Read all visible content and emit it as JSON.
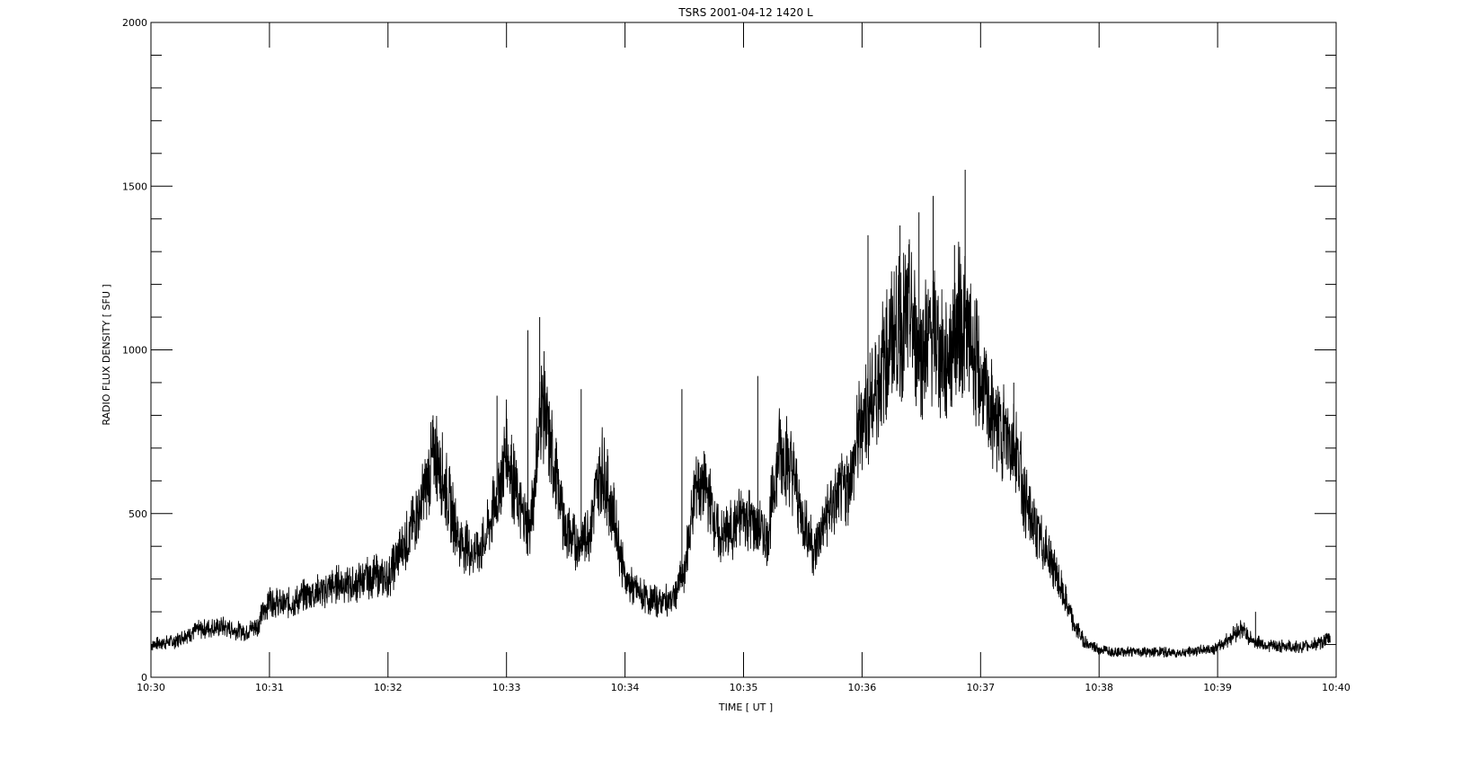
{
  "colors": {
    "background": "#ffffff",
    "line": "#000000",
    "axes": "#000000"
  },
  "chart_data": {
    "type": "line",
    "title": "TSRS  2001-04-12  1420  L",
    "xlabel": "TIME [ UT ]",
    "ylabel": "RADIO FLUX DENSITY [ SFU ]",
    "x_unit": "UT (minutes after 10:30)",
    "xlim": [
      0,
      10
    ],
    "ylim": [
      0,
      2000
    ],
    "x_ticks": [
      {
        "value": 0,
        "label": "10:30"
      },
      {
        "value": 1,
        "label": "10:31"
      },
      {
        "value": 2,
        "label": "10:32"
      },
      {
        "value": 3,
        "label": "10:33"
      },
      {
        "value": 4,
        "label": "10:34"
      },
      {
        "value": 5,
        "label": "10:35"
      },
      {
        "value": 6,
        "label": "10:36"
      },
      {
        "value": 7,
        "label": "10:37"
      },
      {
        "value": 8,
        "label": "10:38"
      },
      {
        "value": 9,
        "label": "10:39"
      },
      {
        "value": 10,
        "label": "10:40"
      }
    ],
    "y_ticks": [
      {
        "value": 0,
        "label": "0"
      },
      {
        "value": 500,
        "label": "500"
      },
      {
        "value": 1000,
        "label": "1000"
      },
      {
        "value": 1500,
        "label": "1500"
      },
      {
        "value": 2000,
        "label": "2000"
      }
    ],
    "y_minor_step": 100,
    "grid": false,
    "legend": "none",
    "series": [
      {
        "x": [
          0.0,
          0.1,
          0.2,
          0.3,
          0.4,
          0.5,
          0.6,
          0.7,
          0.8,
          0.9,
          1.0,
          1.1,
          1.2,
          1.3,
          1.4,
          1.5,
          1.6,
          1.7,
          1.8,
          1.9,
          2.0,
          2.1,
          2.2,
          2.3,
          2.4,
          2.5,
          2.6,
          2.7,
          2.8,
          2.9,
          3.0,
          3.1,
          3.2,
          3.3,
          3.4,
          3.5,
          3.6,
          3.7,
          3.8,
          3.9,
          4.0,
          4.1,
          4.2,
          4.3,
          4.4,
          4.5,
          4.6,
          4.7,
          4.8,
          4.9,
          5.0,
          5.1,
          5.2,
          5.3,
          5.4,
          5.5,
          5.6,
          5.7,
          5.8,
          5.9,
          6.0,
          6.1,
          6.2,
          6.3,
          6.4,
          6.5,
          6.6,
          6.7,
          6.8,
          6.9,
          7.0,
          7.1,
          7.2,
          7.3,
          7.4,
          7.5,
          7.6,
          7.7,
          7.8,
          7.9,
          8.0,
          8.1,
          8.2,
          8.3,
          8.4,
          8.5,
          8.6,
          8.7,
          8.8,
          8.9,
          9.0,
          9.1,
          9.2,
          9.3,
          9.4,
          9.5,
          9.6,
          9.7,
          9.8,
          9.9,
          9.95
        ],
        "y": [
          100,
          105,
          110,
          130,
          145,
          150,
          155,
          145,
          140,
          160,
          240,
          220,
          230,
          250,
          260,
          270,
          290,
          280,
          300,
          310,
          300,
          380,
          450,
          550,
          700,
          560,
          420,
          380,
          400,
          520,
          700,
          520,
          450,
          850,
          650,
          450,
          400,
          450,
          650,
          500,
          300,
          260,
          240,
          230,
          240,
          320,
          600,
          560,
          420,
          450,
          500,
          470,
          420,
          700,
          650,
          480,
          380,
          500,
          550,
          600,
          800,
          850,
          1000,
          1050,
          1100,
          1000,
          1050,
          950,
          1100,
          1050,
          900,
          800,
          750,
          700,
          500,
          420,
          350,
          250,
          150,
          100,
          85,
          80,
          80,
          78,
          78,
          78,
          75,
          75,
          80,
          85,
          90,
          120,
          150,
          110,
          100,
          95,
          95,
          90,
          100,
          110,
          120
        ],
        "spikes": [
          {
            "x": 2.38,
            "y": 800
          },
          {
            "x": 2.92,
            "y": 860
          },
          {
            "x": 3.18,
            "y": 1060
          },
          {
            "x": 3.28,
            "y": 1100
          },
          {
            "x": 3.63,
            "y": 880
          },
          {
            "x": 4.48,
            "y": 880
          },
          {
            "x": 5.12,
            "y": 920
          },
          {
            "x": 6.05,
            "y": 1350
          },
          {
            "x": 6.32,
            "y": 1380
          },
          {
            "x": 6.48,
            "y": 1420
          },
          {
            "x": 6.6,
            "y": 1470
          },
          {
            "x": 6.78,
            "y": 1320
          },
          {
            "x": 6.87,
            "y": 1550
          },
          {
            "x": 7.28,
            "y": 900
          },
          {
            "x": 9.32,
            "y": 200
          }
        ]
      }
    ]
  }
}
